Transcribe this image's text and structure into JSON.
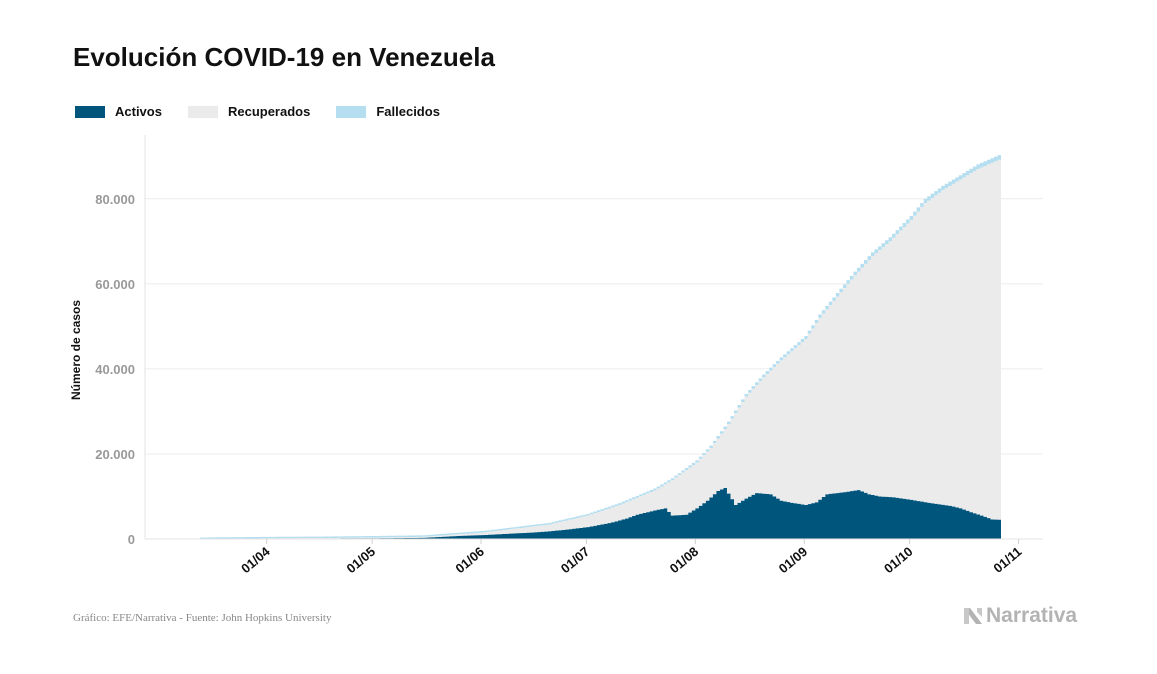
{
  "header": {
    "title": "Evolución COVID-19 en Venezuela"
  },
  "legend": {
    "items": [
      {
        "label": "Activos",
        "color": "#00557d"
      },
      {
        "label": "Recuperados",
        "color": "#ebebeb"
      },
      {
        "label": "Fallecidos",
        "color": "#b5dff0"
      }
    ]
  },
  "footer": {
    "source": "Gráfico: EFE/Narrativa - Fuente: John Hopkins University",
    "brand": "Narrativa"
  },
  "chart_data": {
    "type": "area",
    "stacked": true,
    "step": true,
    "xlabel": "",
    "ylabel": "Número de casos",
    "ylim": [
      0,
      95000
    ],
    "x_range": [
      "2020-03-13",
      "2020-10-27"
    ],
    "x_ticks": [
      {
        "date": "2020-04-01",
        "label": "01/04"
      },
      {
        "date": "2020-05-01",
        "label": "01/05"
      },
      {
        "date": "2020-06-01",
        "label": "01/06"
      },
      {
        "date": "2020-07-01",
        "label": "01/07"
      },
      {
        "date": "2020-08-01",
        "label": "01/08"
      },
      {
        "date": "2020-09-01",
        "label": "01/09"
      },
      {
        "date": "2020-10-01",
        "label": "01/10"
      },
      {
        "date": "2020-11-01",
        "label": "01/11"
      }
    ],
    "y_ticks": [
      {
        "value": 0,
        "label": "0"
      },
      {
        "value": 20000,
        "label": "20.000"
      },
      {
        "value": 40000,
        "label": "40.000"
      },
      {
        "value": 60000,
        "label": "60.000"
      },
      {
        "value": 80000,
        "label": "80.000"
      }
    ],
    "grid": true,
    "legend_position": "top-left",
    "series": [
      {
        "name": "Activos",
        "color": "#00557d",
        "points": [
          [
            "2020-03-13",
            10
          ],
          [
            "2020-04-01",
            120
          ],
          [
            "2020-04-15",
            120
          ],
          [
            "2020-05-01",
            150
          ],
          [
            "2020-05-15",
            260
          ],
          [
            "2020-05-25",
            700
          ],
          [
            "2020-06-01",
            900
          ],
          [
            "2020-06-10",
            1300
          ],
          [
            "2020-06-15",
            1500
          ],
          [
            "2020-06-20",
            1800
          ],
          [
            "2020-06-25",
            2200
          ],
          [
            "2020-07-01",
            2800
          ],
          [
            "2020-07-05",
            3400
          ],
          [
            "2020-07-08",
            3900
          ],
          [
            "2020-07-12",
            4800
          ],
          [
            "2020-07-15",
            5700
          ],
          [
            "2020-07-20",
            6700
          ],
          [
            "2020-07-23",
            7200
          ],
          [
            "2020-07-25",
            5500
          ],
          [
            "2020-07-29",
            5700
          ],
          [
            "2020-08-01",
            7200
          ],
          [
            "2020-08-04",
            9000
          ],
          [
            "2020-08-07",
            11300
          ],
          [
            "2020-08-09",
            12000
          ],
          [
            "2020-08-12",
            8000
          ],
          [
            "2020-08-15",
            9500
          ],
          [
            "2020-08-18",
            10800
          ],
          [
            "2020-08-22",
            10500
          ],
          [
            "2020-08-25",
            9000
          ],
          [
            "2020-08-28",
            8500
          ],
          [
            "2020-09-01",
            8000
          ],
          [
            "2020-09-04",
            8600
          ],
          [
            "2020-09-07",
            10500
          ],
          [
            "2020-09-12",
            11000
          ],
          [
            "2020-09-16",
            11500
          ],
          [
            "2020-09-19",
            10500
          ],
          [
            "2020-09-22",
            10000
          ],
          [
            "2020-09-26",
            9800
          ],
          [
            "2020-10-01",
            9200
          ],
          [
            "2020-10-06",
            8500
          ],
          [
            "2020-10-12",
            7800
          ],
          [
            "2020-10-15",
            7200
          ],
          [
            "2020-10-18",
            6300
          ],
          [
            "2020-10-21",
            5500
          ],
          [
            "2020-10-24",
            4600
          ],
          [
            "2020-10-27",
            4500
          ]
        ]
      },
      {
        "name": "Recuperados",
        "color": "#ebebeb",
        "cumulative_total_points": [
          [
            "2020-03-13",
            10
          ],
          [
            "2020-04-01",
            150
          ],
          [
            "2020-04-15",
            200
          ],
          [
            "2020-05-01",
            350
          ],
          [
            "2020-05-15",
            500
          ],
          [
            "2020-05-25",
            1100
          ],
          [
            "2020-06-01",
            1500
          ],
          [
            "2020-06-10",
            2400
          ],
          [
            "2020-06-20",
            3400
          ],
          [
            "2020-07-01",
            5500
          ],
          [
            "2020-07-10",
            8000
          ],
          [
            "2020-07-15",
            9700
          ],
          [
            "2020-07-20",
            11400
          ],
          [
            "2020-07-25",
            13800
          ],
          [
            "2020-08-01",
            18000
          ],
          [
            "2020-08-05",
            21400
          ],
          [
            "2020-08-10",
            27000
          ],
          [
            "2020-08-15",
            33500
          ],
          [
            "2020-08-20",
            38000
          ],
          [
            "2020-08-25",
            42000
          ],
          [
            "2020-09-01",
            47000
          ],
          [
            "2020-09-05",
            52000
          ],
          [
            "2020-09-10",
            57000
          ],
          [
            "2020-09-15",
            62000
          ],
          [
            "2020-09-20",
            66500
          ],
          [
            "2020-09-25",
            70000
          ],
          [
            "2020-10-01",
            75000
          ],
          [
            "2020-10-05",
            79000
          ],
          [
            "2020-10-10",
            82000
          ],
          [
            "2020-10-15",
            84500
          ],
          [
            "2020-10-20",
            87000
          ],
          [
            "2020-10-25",
            88800
          ],
          [
            "2020-10-27",
            89500
          ]
        ]
      },
      {
        "name": "Fallecidos",
        "color": "#b5dff0",
        "points": [
          [
            "2020-03-13",
            0
          ],
          [
            "2020-04-15",
            10
          ],
          [
            "2020-05-15",
            10
          ],
          [
            "2020-06-15",
            30
          ],
          [
            "2020-07-01",
            60
          ],
          [
            "2020-07-15",
            100
          ],
          [
            "2020-08-01",
            160
          ],
          [
            "2020-08-15",
            290
          ],
          [
            "2020-09-01",
            400
          ],
          [
            "2020-09-15",
            530
          ],
          [
            "2020-10-01",
            630
          ],
          [
            "2020-10-15",
            700
          ],
          [
            "2020-10-27",
            770
          ]
        ]
      }
    ]
  }
}
